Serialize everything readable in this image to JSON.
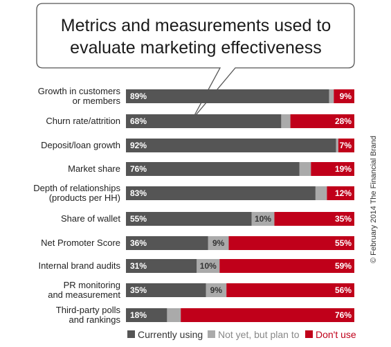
{
  "chart_data": {
    "type": "bar",
    "orientation": "horizontal",
    "stacked": true,
    "title": [
      "Metrics and measurements used to",
      "evaluate marketing effectiveness"
    ],
    "categories": [
      [
        "Growth in customers",
        "or members"
      ],
      [
        "Churn rate/attrition"
      ],
      [
        "Deposit/loan growth"
      ],
      [
        "Market share"
      ],
      [
        "Depth of relationships",
        "(products per HH)"
      ],
      [
        "Share of wallet"
      ],
      [
        "Net Promoter Score"
      ],
      [
        "Internal brand audits"
      ],
      [
        "PR monitoring",
        "and measurement"
      ],
      [
        "Third-party polls",
        "and rankings"
      ]
    ],
    "series": [
      {
        "name": "Currently using",
        "color": "#555555",
        "values": [
          89,
          68,
          92,
          76,
          83,
          55,
          36,
          31,
          35,
          18
        ]
      },
      {
        "name": "Not yet, but plan to",
        "color": "#aaaaaa",
        "values": [
          2,
          4,
          1,
          5,
          5,
          10,
          9,
          10,
          9,
          6
        ]
      },
      {
        "name": "Don't use",
        "color": "#c0001a",
        "values": [
          9,
          28,
          7,
          19,
          12,
          35,
          55,
          59,
          56,
          76
        ]
      }
    ],
    "labels": [
      [
        "89%",
        "",
        "9%"
      ],
      [
        "68%",
        "",
        "28%"
      ],
      [
        "92%",
        "",
        "7%"
      ],
      [
        "76%",
        "",
        "19%"
      ],
      [
        "83%",
        "",
        "12%"
      ],
      [
        "55%",
        "10%",
        "35%"
      ],
      [
        "36%",
        "9%",
        "55%"
      ],
      [
        "31%",
        "10%",
        "59%"
      ],
      [
        "35%",
        "9%",
        "56%"
      ],
      [
        "18%",
        "",
        "76%"
      ]
    ],
    "xlim": [
      0,
      100
    ],
    "legend_position": "bottom"
  },
  "copyright": "© February 2014 The Financial Brand"
}
